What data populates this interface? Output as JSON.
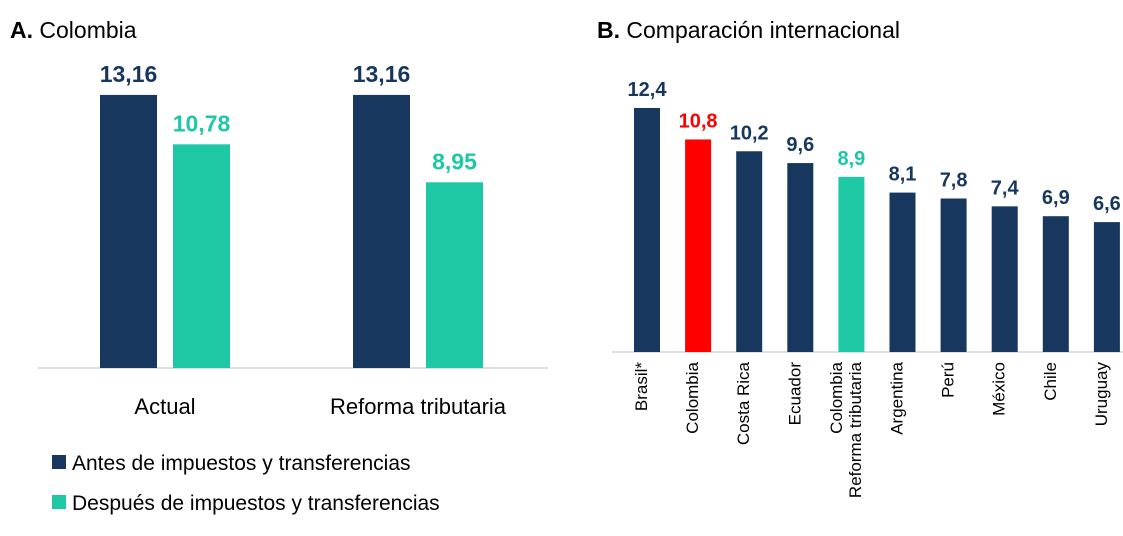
{
  "chart_data": [
    {
      "type": "bar",
      "title_prefix": "A.",
      "title": "Colombia",
      "categories": [
        "Actual",
        "Reforma tributaria"
      ],
      "series": [
        {
          "name": "Antes de impuestos y transferencias",
          "color": "#17375e",
          "values": [
            13.16,
            13.16
          ],
          "value_labels": [
            "13,16",
            "13,16"
          ]
        },
        {
          "name": "Después de impuestos y transferencias",
          "color": "#1ec8a5",
          "values": [
            10.78,
            8.95
          ],
          "value_labels": [
            "10,78",
            "8,95"
          ]
        }
      ]
    },
    {
      "type": "bar",
      "title_prefix": "B.",
      "title": "Comparación internacional",
      "categories": [
        "Brasil*",
        "Colombia",
        "Costa Rica",
        "Ecuador",
        "Colombia\nReforma tributaria",
        "Argentina",
        "Perú",
        "México",
        "Chile",
        "Uruguay"
      ],
      "values": [
        12.4,
        10.8,
        10.2,
        9.6,
        8.9,
        8.1,
        7.8,
        7.4,
        6.9,
        6.6
      ],
      "value_labels": [
        "12,4",
        "10,8",
        "10,2",
        "9,6",
        "8,9",
        "8,1",
        "7,8",
        "7,4",
        "6,9",
        "6,6"
      ],
      "colors": [
        "#17375e",
        "#ff0000",
        "#17375e",
        "#17375e",
        "#1ec8a5",
        "#17375e",
        "#17375e",
        "#17375e",
        "#17375e",
        "#17375e"
      ]
    }
  ]
}
